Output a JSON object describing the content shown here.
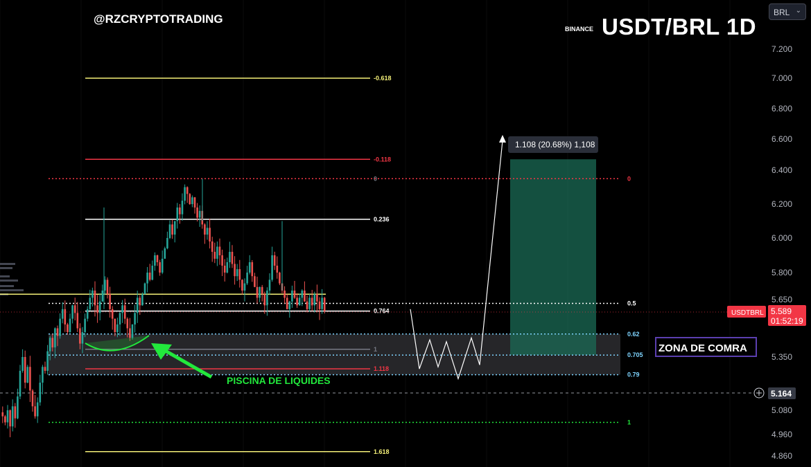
{
  "header": {
    "handle": "@RZCRYPTOTRADING",
    "exchange": "BINANCE",
    "title": "USDT/BRL 1D"
  },
  "currency_select": {
    "value": "BRL",
    "chevron_icon": "chevron-down-icon"
  },
  "colors": {
    "background": "#000000",
    "bull_candle": "#26a69a",
    "bear_candle": "#ef5350",
    "yellow": "#f5f179",
    "red": "#f23645",
    "cyan": "#7fd4ff",
    "green_arrow": "#22e83c",
    "target_zone": "#1b6b55",
    "gray_text": "#b2b5be"
  },
  "chart_data": {
    "type": "candlestick",
    "symbol": "USDTBRL",
    "interval": "1D",
    "y_axis": {
      "ticks": [
        7.2,
        7.0,
        6.8,
        6.6,
        6.4,
        6.2,
        6.0,
        5.8,
        5.65,
        5.35,
        5.08,
        4.96,
        4.86
      ],
      "tick_labels": [
        "7.200",
        "7.000",
        "6.800",
        "6.600",
        "6.400",
        "6.200",
        "6.000",
        "5.800",
        "5.650",
        "5.350",
        "5.080",
        "4.960",
        "4.860"
      ]
    },
    "last_price": {
      "label": "USDTBRL",
      "value": "5.589",
      "countdown": "01:52:19"
    },
    "crosshair_price": "5.164",
    "fib_left": [
      {
        "label": "-0.618",
        "price": 7.0
      },
      {
        "label": "-0.118",
        "price": 6.47
      },
      {
        "label": "0",
        "price": 6.35
      },
      {
        "label": "0.236",
        "price": 6.11
      },
      {
        "label": "0.764",
        "price": 5.59
      },
      {
        "label": "1",
        "price": 5.39
      },
      {
        "label": "1.118",
        "price": 5.29
      },
      {
        "label": "1.618",
        "price": 4.88
      }
    ],
    "fib_right": [
      {
        "label": "0",
        "price": 6.35
      },
      {
        "label": "0.5",
        "price": 5.63
      },
      {
        "label": "0.62",
        "price": 5.47
      },
      {
        "label": "0.705",
        "price": 5.36
      },
      {
        "label": "0.79",
        "price": 5.26
      },
      {
        "label": "1",
        "price": 5.02
      }
    ],
    "horizontal_level": 5.68,
    "buy_zone": {
      "top": 5.47,
      "bottom": 5.26,
      "label": "ZONA DE COMRA"
    },
    "liquidity_label": "PISCINA DE LIQUIDES",
    "projection_label": "1.108 (20.68%) 1,108",
    "projection_path": [
      5.6,
      5.29,
      5.44,
      5.3,
      5.43,
      5.24,
      5.45,
      5.31,
      6.59
    ],
    "target_zone": {
      "top": 6.47,
      "bottom": 5.36
    },
    "candles_close": [
      5.05,
      5.02,
      5.08,
      5.0,
      5.1,
      5.04,
      5.15,
      5.28,
      5.35,
      5.22,
      5.3,
      5.18,
      5.1,
      5.05,
      5.12,
      5.22,
      5.3,
      5.28,
      5.38,
      5.45,
      5.4,
      5.5,
      5.46,
      5.55,
      5.6,
      5.52,
      5.48,
      5.55,
      5.62,
      5.58,
      5.5,
      5.42,
      5.48,
      5.55,
      5.6,
      5.66,
      5.7,
      5.62,
      5.58,
      5.64,
      5.7,
      5.76,
      5.68,
      5.6,
      5.55,
      5.48,
      5.52,
      5.58,
      5.62,
      5.55,
      5.5,
      5.45,
      5.52,
      5.58,
      5.66,
      5.62,
      5.68,
      5.74,
      5.8,
      5.76,
      5.84,
      5.9,
      5.86,
      5.8,
      5.88,
      5.94,
      6.0,
      6.08,
      6.02,
      6.1,
      6.18,
      6.14,
      6.22,
      6.3,
      6.26,
      6.2,
      6.24,
      6.18,
      6.12,
      6.16,
      6.08,
      6.02,
      6.06,
      5.98,
      5.92,
      5.88,
      5.95,
      5.9,
      5.84,
      5.8,
      5.86,
      5.92,
      5.85,
      5.78,
      5.82,
      5.76,
      5.7,
      5.74,
      5.8,
      5.86,
      5.78,
      5.72,
      5.66,
      5.72,
      5.68,
      5.62,
      5.7,
      5.76,
      5.9,
      5.84,
      5.8,
      5.74,
      5.7,
      5.66,
      5.6,
      5.64,
      5.7,
      5.66,
      5.62,
      5.66,
      5.7,
      5.64,
      5.6,
      5.66,
      5.62,
      5.68,
      5.64,
      5.6,
      5.66,
      5.59
    ]
  }
}
